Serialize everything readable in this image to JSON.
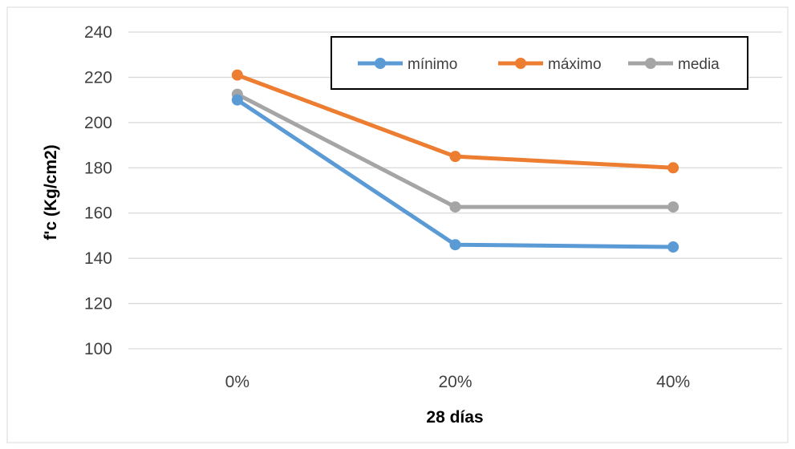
{
  "chart_data": {
    "type": "line",
    "categories": [
      "0%",
      "20%",
      "40%"
    ],
    "series": [
      {
        "name": "mínimo",
        "values": [
          210,
          146,
          145
        ],
        "color": "#5b9bd5"
      },
      {
        "name": "máximo",
        "values": [
          221,
          185,
          180
        ],
        "color": "#ed7d31"
      },
      {
        "name": "media",
        "values": [
          212.5,
          162.7,
          162.7
        ],
        "color": "#a5a5a5"
      }
    ],
    "title": "",
    "xlabel": "28 días",
    "ylabel": "f'c (Kg/cm2)",
    "ylim": [
      100,
      240
    ],
    "yticks": [
      100,
      120,
      140,
      160,
      180,
      200,
      220,
      240
    ],
    "grid": true,
    "legend_position": "top-right"
  }
}
